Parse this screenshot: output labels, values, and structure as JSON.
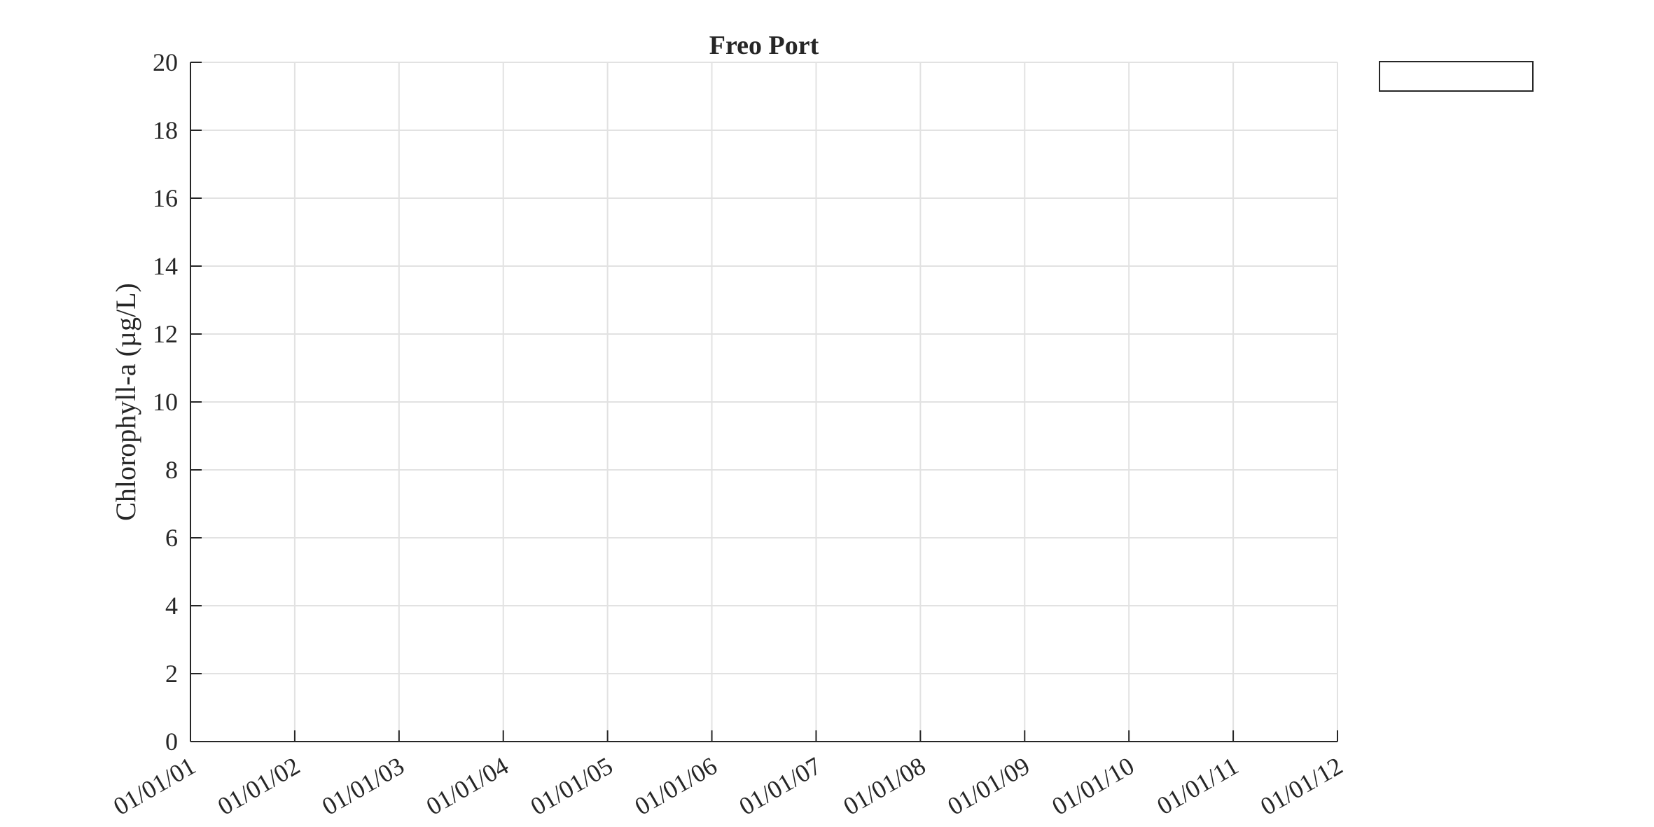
{
  "chart_data": {
    "type": "line",
    "title": "Freo Port",
    "xlabel": "",
    "ylabel": "Chlorophyll-a (µg/L)",
    "x_ticks": [
      "01/01/01",
      "01/01/02",
      "01/01/03",
      "01/01/04",
      "01/01/05",
      "01/01/06",
      "01/01/07",
      "01/01/08",
      "01/01/09",
      "01/01/10",
      "01/01/11",
      "01/01/12"
    ],
    "y_ticks": [
      0,
      2,
      4,
      6,
      8,
      10,
      12,
      14,
      16,
      18,
      20
    ],
    "ylim": [
      0,
      20
    ],
    "xlim": [
      "01/01/01",
      "01/01/12"
    ],
    "grid": true,
    "legend": {
      "placement": "outside-top-right",
      "entries": []
    },
    "series": []
  }
}
